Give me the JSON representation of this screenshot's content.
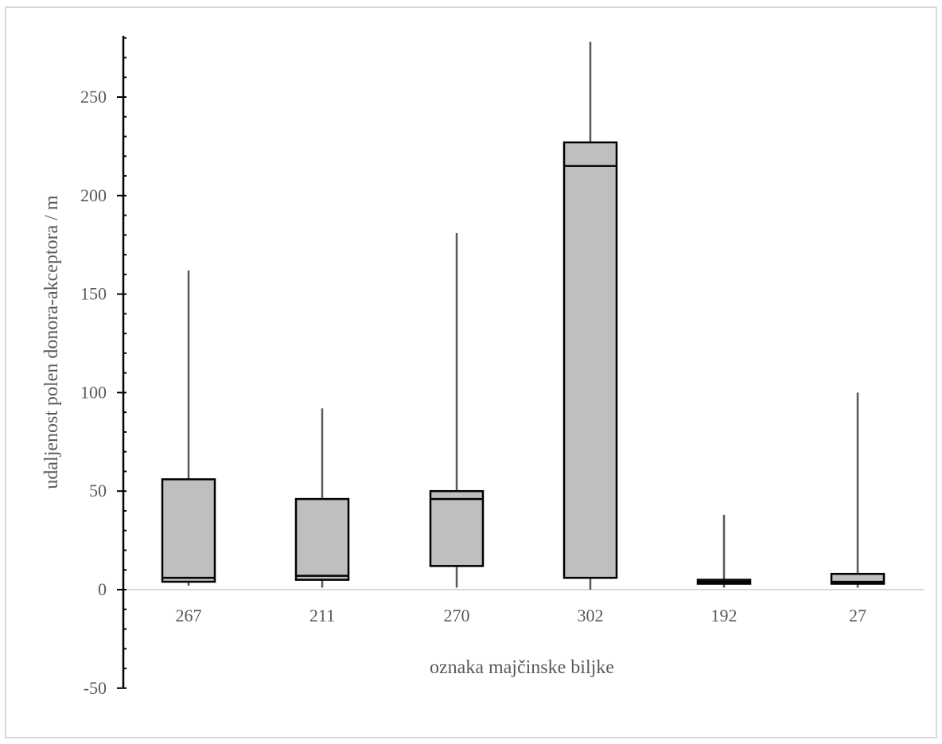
{
  "chart_data": {
    "type": "box",
    "xlabel": "oznaka majčinske biljke",
    "ylabel": "udaljenost polen donora-akceptora / m",
    "ylim": [
      -50,
      280
    ],
    "yticks": [
      -50,
      0,
      50,
      100,
      150,
      200,
      250
    ],
    "categories": [
      "267",
      "211",
      "270",
      "302",
      "192",
      "27"
    ],
    "boxes": [
      {
        "category": "267",
        "min": 2,
        "q1": 4,
        "median": 6,
        "q3": 56,
        "max": 162
      },
      {
        "category": "211",
        "min": 1,
        "q1": 5,
        "median": 7,
        "q3": 46,
        "max": 92
      },
      {
        "category": "270",
        "min": 1,
        "q1": 12,
        "median": 46,
        "q3": 50,
        "max": 181
      },
      {
        "category": "302",
        "min": 0,
        "q1": 6,
        "median": 215,
        "q3": 227,
        "max": 278
      },
      {
        "category": "192",
        "min": 1,
        "q1": 3,
        "median": 4,
        "q3": 5,
        "max": 38
      },
      {
        "category": "27",
        "min": 1,
        "q1": 3,
        "median": 4,
        "q3": 8,
        "max": 100
      }
    ],
    "colors": {
      "box_fill": "#bfbfbf",
      "box_stroke": "#000000",
      "whisker": "#595959",
      "axis": "#000000",
      "zero_line": "#d9d9d9"
    },
    "grid": false,
    "legend": "none"
  }
}
